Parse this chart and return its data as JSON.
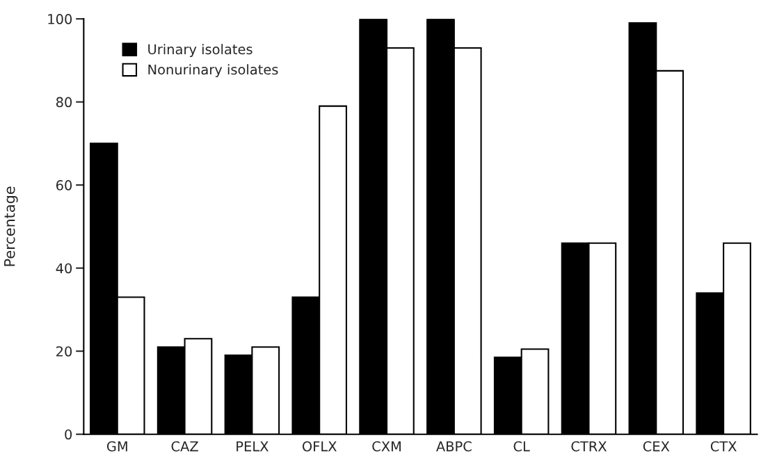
{
  "chart_data": {
    "type": "bar",
    "ylabel": "Percentage",
    "categories": [
      "GM",
      "CAZ",
      "PELX",
      "OFLX",
      "CXM",
      "ABPC",
      "CL",
      "CTRX",
      "CEX",
      "CTX"
    ],
    "series": [
      {
        "name": "Urinary isolates",
        "color": "#000000",
        "values": [
          70,
          21,
          19,
          33,
          100,
          100,
          18.5,
          46,
          99,
          34
        ]
      },
      {
        "name": "Nonurinary isolates",
        "color": "#ffffff",
        "values": [
          33,
          23,
          21,
          79,
          93,
          93,
          20.5,
          46,
          87.5,
          46
        ]
      }
    ],
    "ylim": [
      0,
      100
    ],
    "yticks": [
      0,
      20,
      40,
      60,
      80,
      100
    ],
    "grid": false,
    "legend": "top left"
  }
}
